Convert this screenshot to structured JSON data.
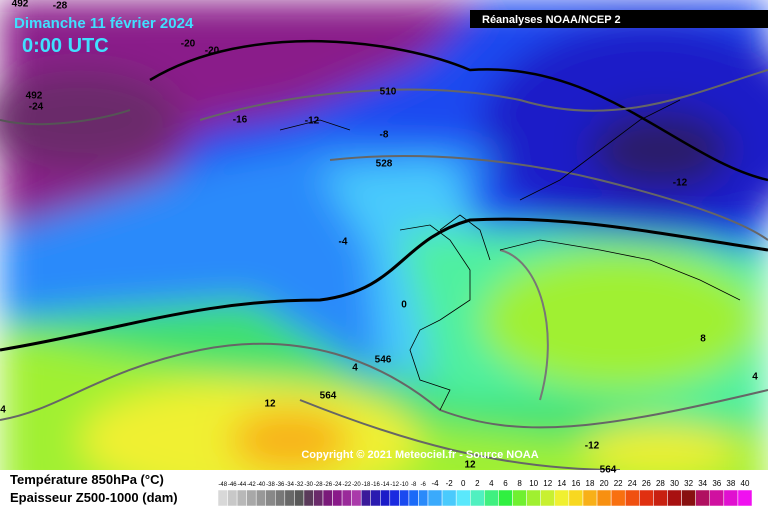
{
  "header": {
    "date": "Dimanche 11 février 2024",
    "time": "0:00 UTC",
    "source": "Réanalyses NOAA/NCEP 2"
  },
  "copyright": "Copyright © 2021 Meteociel.fr - Source NOAA",
  "legend": {
    "temperature": "Température 850hPa (°C)",
    "thickness": "Epaisseur Z500-1000 (dam)",
    "scale": [
      -48,
      -46,
      -44,
      -42,
      -40,
      -38,
      -36,
      -34,
      -32,
      -30,
      -28,
      -26,
      -24,
      -22,
      -20,
      -18,
      -16,
      -14,
      -12,
      -10,
      -8,
      -6,
      -4,
      -2,
      0,
      2,
      4,
      6,
      8,
      10,
      12,
      14,
      16,
      18,
      20,
      22,
      24,
      26,
      28,
      30,
      32,
      34,
      36,
      38,
      40
    ],
    "colors": [
      "#d8d8d8",
      "#c8c8c8",
      "#b8b8b8",
      "#a8a8a8",
      "#989898",
      "#888888",
      "#787878",
      "#686868",
      "#585858",
      "#5a3a5a",
      "#6a2a6a",
      "#7a1a7a",
      "#8a1a8a",
      "#9a2a9a",
      "#aa3aaa",
      "#3a1a9a",
      "#2a1ab0",
      "#1a1ac8",
      "#1a2ae0",
      "#1a4af0",
      "#1a6af8",
      "#2a8afa",
      "#3aaafc",
      "#4acafc",
      "#5ae8fc",
      "#50f0c0",
      "#40f080",
      "#30f040",
      "#70f030",
      "#a0f030",
      "#c8f030",
      "#f0f030",
      "#f8d820",
      "#f8b018",
      "#f89010",
      "#f87010",
      "#f05010",
      "#e03010",
      "#c82010",
      "#a81010",
      "#881010",
      "#b01060",
      "#d010a0",
      "#e010d0",
      "#f010f0"
    ]
  },
  "contour_labels": [
    -28,
    492,
    -20,
    -20,
    492,
    -24,
    -16,
    -12,
    -8,
    510,
    528,
    -12,
    -4,
    0,
    546,
    4,
    564,
    12,
    -12,
    12,
    564,
    8,
    4,
    4
  ]
}
